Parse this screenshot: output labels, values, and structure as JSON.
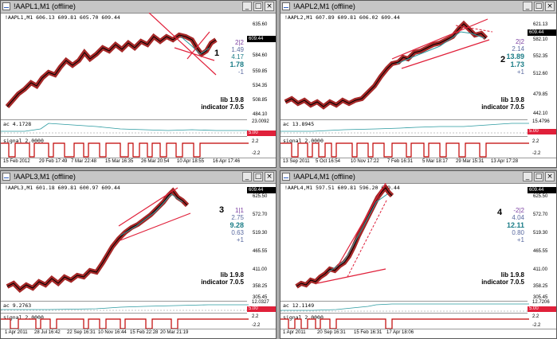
{
  "windows": [
    {
      "title": "!AAPL1,M1 (offline)",
      "header": "!AAPL1,M1  606.13 609.81 605.70 609.44",
      "bid": "609.44",
      "panel_number": "1",
      "lib": "lib 1.9.8",
      "indicator": "indicator 7.0.5",
      "prices": [
        "635.60",
        "609.44",
        "584.60",
        "559.85",
        "534.35",
        "508.85",
        "484.10"
      ],
      "ind_values": [
        "2|2",
        "1.49",
        "4.17",
        "1.78",
        "-1"
      ],
      "sub1_label": "ac 4.1728",
      "sub1_scale": [
        "23.0092",
        "5.00",
        "0.00"
      ],
      "sub2_label": "signal 2.0000",
      "sub2_scale": [
        "2.2",
        "-2.2"
      ],
      "dates": [
        "15 Feb 2012",
        "29 Feb 17:49",
        "7 Mar 22:48",
        "15 Mar 16:35",
        "26 Mar 20:54",
        "10 Apr 18:55",
        "16 Apr 17:46"
      ]
    },
    {
      "title": "!AAPL2,M1 (offline)",
      "header": "!AAPL2,M1  607.89 609.81 606.02 609.44",
      "bid": "609.44",
      "panel_number": "2",
      "lib": "lib 1.9.8",
      "indicator": "indicator 7.0.5",
      "prices": [
        "621.13",
        "609.44",
        "582.10",
        "552.35",
        "512.60",
        "479.85",
        "442.10"
      ],
      "ind_values": [
        "2|2",
        "2.14",
        "13.89",
        "1.73",
        "+1"
      ],
      "sub1_label": "ac 13.8945",
      "sub1_scale": [
        "15.4796",
        "5.00",
        "0.00"
      ],
      "sub2_label": "signal 2.0000",
      "sub2_scale": [
        "2.2",
        "-2.2"
      ],
      "dates": [
        "13 Sep 2011",
        "5 Oct 16:54",
        "10 Nov 17:22",
        "7 Feb 16:31",
        "5 Mar 18:17",
        "29 Mar 15:31",
        "13 Apr 17:28"
      ]
    },
    {
      "title": "!AAPL3,M1 (offline)",
      "header": "!AAPL3,M1  601.18 609.81 600.97 609.44",
      "bid": "609.44",
      "panel_number": "3",
      "lib": "lib 1.9.8",
      "indicator": "indicator 7.0.5",
      "prices": [
        "625.50",
        "609.44",
        "572.70",
        "519.30",
        "465.55",
        "411.00",
        "358.25",
        "305.45"
      ],
      "ind_values": [
        "1|1",
        "2.75",
        "9.28",
        "0.63",
        "+1"
      ],
      "sub1_label": "ac 9.2763",
      "sub1_scale": [
        "12.0327",
        "5.00",
        "0.273"
      ],
      "sub2_label": "signal 2.0000",
      "sub2_scale": [
        "2.2",
        "-2.2"
      ],
      "dates": [
        "1 Apr 2011",
        "28 Jul 16:42",
        "22 Sep 16:31",
        "10 Nov 16:44",
        "15 Feb 22:28",
        "20 Mar 21:19"
      ]
    },
    {
      "title": "!AAPL4,M1 (offline)",
      "header": "!AAPL4,M1  597.51 609.81 596.20 609.44",
      "bid": "609.44",
      "panel_number": "4",
      "lib": "lib 1.9.8",
      "indicator": "indicator 7.0.5",
      "prices": [
        "625.50",
        "609.44",
        "572.70",
        "519.30",
        "465.55",
        "411.00",
        "358.25",
        "305.45"
      ],
      "ind_values": [
        "-2|2",
        "4.04",
        "12.11",
        "0.80",
        "+1"
      ],
      "sub1_label": "ac 12.1149",
      "sub1_scale": [
        "12.7206",
        "5.00",
        "0.00"
      ],
      "sub2_label": "signal 2.0000",
      "sub2_scale": [
        "2.2",
        "-2.2"
      ],
      "dates": [
        "1 Apr 2011",
        "20 Sep 16:31",
        "15 Feb 16:31",
        "17 Apr 18:06"
      ]
    }
  ],
  "colors": {
    "price_line": "#000000",
    "band": "#9a1010",
    "trend_line": "#e0203a",
    "ma_line": "#2a9aa0",
    "signal_line": "#c00000",
    "ind_purple": "#7a3ea0",
    "ind_teal": "#1a7c86",
    "ind_gray": "#5a6aa0"
  }
}
